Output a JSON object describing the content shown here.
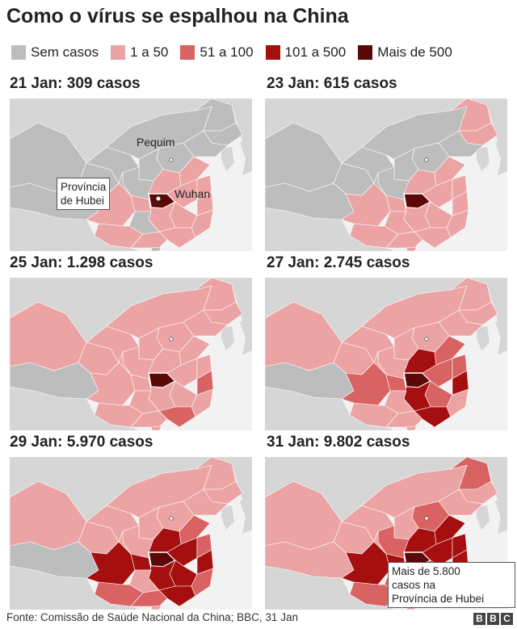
{
  "title": "Como o vírus se espalhou na China",
  "legend": [
    {
      "label": "Sem casos",
      "color": "#bdbdbd"
    },
    {
      "label": "1 a 50",
      "color": "#eba3a3"
    },
    {
      "label": "51 a 100",
      "color": "#d96262"
    },
    {
      "label": "101 a 500",
      "color": "#a50f0f"
    },
    {
      "label": "Mais de 500",
      "color": "#5c0808"
    }
  ],
  "panels": [
    {
      "title": "21 Jan: 309 casos"
    },
    {
      "title": "23 Jan: 615 casos"
    },
    {
      "title": "25 Jan: 1.298 casos"
    },
    {
      "title": "27 Jan: 2.745 casos"
    },
    {
      "title": "29 Jan: 5.970 casos"
    },
    {
      "title": "31 Jan: 9.802 casos"
    }
  ],
  "annotations": {
    "beijing": "Pequim",
    "wuhan": "Wuhan",
    "hubei_line1": "Província",
    "hubei_line2": "de Hubei",
    "callout_line1": "Mais de 5.800",
    "callout_line2": "casos na",
    "callout_line3": "Província de Hubei"
  },
  "footer": "Fonte: Comissão de Saúde Nacional da China; BBC, 31 Jan",
  "brand": [
    "B",
    "B",
    "C"
  ]
}
